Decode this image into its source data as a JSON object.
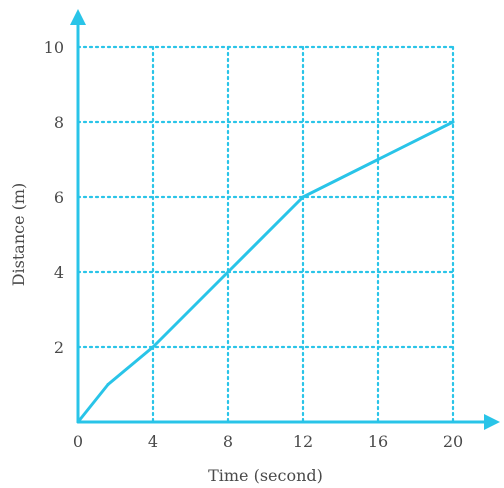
{
  "colors": {
    "accent": "#29c4e8",
    "text": "#4a4a4a",
    "background": "#ffffff"
  },
  "chart_data": {
    "type": "line",
    "title": "",
    "xlabel": "Time (second)",
    "ylabel": "Distance (m)",
    "xlim": [
      0,
      20
    ],
    "ylim": [
      0,
      10
    ],
    "x_ticks": [
      0,
      4,
      8,
      12,
      16,
      20
    ],
    "y_ticks": [
      2,
      4,
      6,
      8,
      10
    ],
    "grid": true,
    "grid_style": "dotted",
    "series": [
      {
        "x": [
          0,
          1.6,
          4,
          8,
          12,
          16,
          20
        ],
        "y": [
          0,
          1,
          2,
          4,
          6,
          7,
          8
        ]
      }
    ]
  }
}
